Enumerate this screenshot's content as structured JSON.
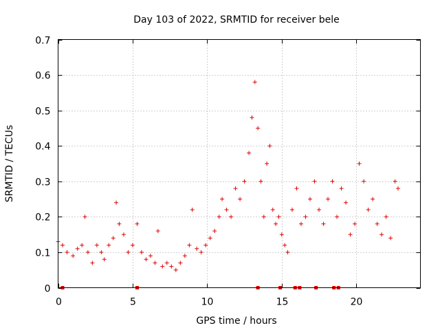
{
  "chart_data": {
    "type": "scatter",
    "title": "Day 103 of 2022, SRMTID for receiver bele",
    "xlabel": "GPS time / hours",
    "ylabel": "SRMTID / TECUs",
    "xlim": [
      0,
      24.3
    ],
    "ylim": [
      0,
      0.7
    ],
    "xticks": [
      0,
      5,
      10,
      15,
      20
    ],
    "yticks": [
      0,
      0.1,
      0.2,
      0.3,
      0.4,
      0.5,
      0.6,
      0.7
    ],
    "xtick_labels": [
      "0",
      "5",
      "10",
      "15",
      "20"
    ],
    "ytick_labels": [
      "0",
      "0.1",
      "0.2",
      "0.3",
      "0.4",
      "0.5",
      "0.6",
      "0.7"
    ],
    "grid": true,
    "legend": false,
    "marker": "plus",
    "color": "#e00000",
    "series": [
      {
        "name": "SRMTID",
        "x": [
          0.0,
          0.3,
          0.6,
          1.0,
          1.3,
          1.6,
          1.8,
          2.0,
          2.3,
          2.6,
          2.9,
          3.1,
          3.4,
          3.7,
          3.9,
          4.1,
          4.4,
          4.7,
          5.0,
          5.3,
          5.6,
          5.9,
          6.2,
          6.5,
          6.7,
          7.0,
          7.3,
          7.6,
          7.9,
          8.2,
          8.5,
          8.8,
          9.0,
          9.3,
          9.6,
          9.9,
          10.2,
          10.5,
          10.8,
          11.0,
          11.3,
          11.6,
          11.9,
          12.2,
          12.5,
          12.8,
          13.0,
          13.2,
          13.4,
          13.6,
          13.8,
          14.0,
          14.2,
          14.4,
          14.6,
          14.8,
          15.0,
          15.2,
          15.4,
          15.7,
          16.0,
          16.3,
          16.6,
          16.9,
          17.2,
          17.5,
          17.8,
          18.1,
          18.4,
          18.7,
          19.0,
          19.3,
          19.6,
          19.9,
          20.2,
          20.5,
          20.8,
          21.1,
          21.4,
          21.7,
          22.0,
          22.3,
          22.6,
          22.8
        ],
        "y": [
          0.13,
          0.12,
          0.1,
          0.09,
          0.11,
          0.12,
          0.2,
          0.1,
          0.07,
          0.12,
          0.1,
          0.08,
          0.12,
          0.14,
          0.24,
          0.18,
          0.15,
          0.1,
          0.12,
          0.18,
          0.1,
          0.08,
          0.09,
          0.07,
          0.16,
          0.06,
          0.07,
          0.06,
          0.05,
          0.07,
          0.09,
          0.12,
          0.22,
          0.11,
          0.1,
          0.12,
          0.14,
          0.16,
          0.2,
          0.25,
          0.22,
          0.2,
          0.28,
          0.25,
          0.3,
          0.38,
          0.48,
          0.58,
          0.45,
          0.3,
          0.2,
          0.35,
          0.4,
          0.22,
          0.18,
          0.2,
          0.15,
          0.12,
          0.1,
          0.22,
          0.28,
          0.18,
          0.2,
          0.25,
          0.3,
          0.22,
          0.18,
          0.25,
          0.3,
          0.2,
          0.28,
          0.24,
          0.15,
          0.18,
          0.35,
          0.3,
          0.22,
          0.25,
          0.18,
          0.15,
          0.2,
          0.14,
          0.3,
          0.28
        ]
      }
    ],
    "flag_markers_x": [
      0.3,
      5.3,
      13.4,
      14.9,
      15.9,
      16.2,
      17.3,
      18.5,
      18.8
    ]
  }
}
